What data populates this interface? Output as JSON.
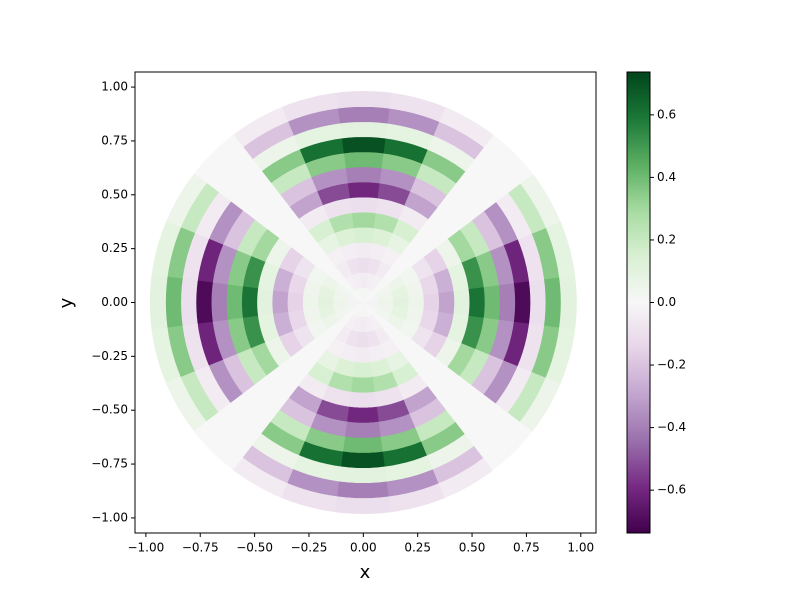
{
  "chart_data": {
    "type": "polar_field",
    "xlabel": "x",
    "ylabel": "y",
    "xlim": [
      -1.05,
      1.07
    ],
    "ylim": [
      -1.07,
      1.07
    ],
    "xticks": [
      {
        "value": -1,
        "label": "−1.00"
      },
      {
        "value": -0.75,
        "label": "−0.75"
      },
      {
        "value": -0.5,
        "label": "−0.50"
      },
      {
        "value": -0.25,
        "label": "−0.25"
      },
      {
        "value": 0,
        "label": "0.00"
      },
      {
        "value": 0.25,
        "label": "0.25"
      },
      {
        "value": 0.5,
        "label": "0.50"
      },
      {
        "value": 0.75,
        "label": "0.75"
      },
      {
        "value": 1,
        "label": "1.00"
      }
    ],
    "yticks": [
      {
        "value": -1,
        "label": "−1.00"
      },
      {
        "value": -0.75,
        "label": "−0.75"
      },
      {
        "value": -0.5,
        "label": "−0.50"
      },
      {
        "value": -0.25,
        "label": "−0.25"
      },
      {
        "value": 0,
        "label": "0.00"
      },
      {
        "value": 0.25,
        "label": "0.25"
      },
      {
        "value": 0.5,
        "label": "0.50"
      },
      {
        "value": 0.75,
        "label": "0.75"
      },
      {
        "value": 1,
        "label": "1.00"
      }
    ],
    "clim": [
      -0.737,
      0.737
    ],
    "cticks": [
      {
        "value": -0.6,
        "label": "−0.6"
      },
      {
        "value": -0.4,
        "label": "−0.4"
      },
      {
        "value": -0.2,
        "label": "−0.2"
      },
      {
        "value": 0,
        "label": "0.0"
      },
      0.2,
      0.4,
      0.6
    ],
    "colormap": [
      "#40004b",
      "#762a83",
      "#9970ab",
      "#c2a5cf",
      "#e7d4e8",
      "#f7f7f7",
      "#d9f0d3",
      "#a6dba0",
      "#5aae61",
      "#1b7837",
      "#00441b"
    ],
    "r": [
      0.035,
      0.105,
      0.175,
      0.245,
      0.315,
      0.385,
      0.455,
      0.525,
      0.595,
      0.665,
      0.735,
      0.805,
      0.875,
      0.945
    ],
    "theta_deg": [
      0,
      15,
      30,
      45,
      60,
      75,
      90,
      105,
      120,
      135,
      150,
      165,
      180,
      195,
      210,
      225,
      240,
      255,
      270,
      285,
      300,
      315,
      330,
      345
    ],
    "values": [
      [
        -0.02,
        -0.02,
        -0.01,
        0,
        0.01,
        0.02,
        0.02,
        0.02,
        0.01,
        0,
        -0.01,
        -0.02,
        -0.02,
        -0.02,
        -0.01,
        0,
        0.01,
        0.02,
        0.02,
        0.02,
        0.01,
        0,
        -0.01,
        -0.02
      ],
      [
        0.05,
        0.04,
        0.03,
        0,
        -0.03,
        -0.04,
        -0.05,
        -0.04,
        -0.03,
        0,
        0.03,
        0.04,
        0.05,
        0.04,
        0.03,
        0,
        -0.03,
        -0.04,
        -0.05,
        -0.04,
        -0.03,
        0,
        0.03,
        0.04
      ],
      [
        0.1,
        0.09,
        0.05,
        0,
        -0.05,
        -0.09,
        -0.1,
        -0.09,
        -0.05,
        0,
        0.05,
        0.09,
        0.1,
        0.09,
        0.05,
        0,
        -0.05,
        -0.09,
        -0.1,
        -0.09,
        -0.05,
        0,
        0.05,
        0.09
      ],
      [
        0.05,
        0.04,
        0.03,
        0,
        -0.03,
        -0.04,
        -0.05,
        -0.04,
        -0.03,
        0,
        0.03,
        0.04,
        0.05,
        0.04,
        0.03,
        0,
        -0.03,
        -0.04,
        -0.05,
        -0.04,
        -0.03,
        0,
        0.03,
        0.04
      ],
      [
        -0.15,
        -0.13,
        -0.08,
        0,
        0.08,
        0.13,
        0.15,
        0.13,
        0.08,
        0,
        -0.08,
        -0.13,
        -0.15,
        -0.13,
        -0.08,
        0,
        0.08,
        0.13,
        0.15,
        0.13,
        0.08,
        0,
        -0.08,
        -0.13
      ],
      [
        -0.3,
        -0.26,
        -0.15,
        0,
        0.15,
        0.26,
        0.3,
        0.26,
        0.15,
        0,
        -0.15,
        -0.26,
        -0.3,
        -0.26,
        -0.15,
        0,
        0.15,
        0.26,
        0.3,
        0.26,
        0.15,
        0,
        -0.15,
        -0.26
      ],
      [
        0.1,
        0.09,
        0.05,
        0,
        -0.05,
        -0.09,
        -0.1,
        -0.09,
        -0.05,
        0,
        0.05,
        0.09,
        0.1,
        0.09,
        0.05,
        0,
        -0.05,
        -0.09,
        -0.1,
        -0.09,
        -0.05,
        0,
        0.05,
        0.09
      ],
      [
        0.6,
        0.52,
        0.3,
        0,
        -0.3,
        -0.52,
        -0.6,
        -0.52,
        -0.3,
        0,
        0.3,
        0.52,
        0.6,
        0.52,
        0.3,
        0,
        -0.3,
        -0.52,
        -0.6,
        -0.52,
        -0.3,
        0,
        0.3,
        0.52
      ],
      [
        0.4,
        0.35,
        0.2,
        0,
        -0.2,
        -0.35,
        -0.4,
        -0.35,
        -0.2,
        0,
        0.2,
        0.35,
        0.4,
        0.35,
        0.2,
        0,
        -0.2,
        -0.35,
        -0.4,
        -0.35,
        -0.2,
        0,
        0.2,
        0.35
      ],
      [
        -0.4,
        -0.35,
        -0.2,
        0,
        0.2,
        0.35,
        0.4,
        0.35,
        0.2,
        0,
        -0.2,
        -0.35,
        -0.4,
        -0.35,
        -0.2,
        0,
        0.2,
        0.35,
        0.4,
        0.35,
        0.2,
        0,
        -0.2,
        -0.35
      ],
      [
        -0.7,
        -0.61,
        -0.35,
        0,
        0.35,
        0.61,
        0.7,
        0.61,
        0.35,
        0,
        -0.35,
        -0.61,
        -0.7,
        -0.61,
        -0.35,
        0,
        0.35,
        0.61,
        0.7,
        0.61,
        0.35,
        0,
        -0.35,
        -0.61
      ],
      [
        -0.1,
        -0.09,
        -0.05,
        0,
        0.05,
        0.09,
        0.1,
        0.09,
        0.05,
        0,
        -0.05,
        -0.09,
        -0.1,
        -0.09,
        -0.05,
        0,
        0.05,
        0.09,
        0.1,
        0.09,
        0.05,
        0,
        -0.05,
        -0.09
      ],
      [
        0.4,
        0.35,
        0.2,
        0,
        -0.2,
        -0.35,
        -0.4,
        -0.35,
        -0.2,
        0,
        0.2,
        0.35,
        0.4,
        0.35,
        0.2,
        0,
        -0.2,
        -0.35,
        -0.4,
        -0.35,
        -0.2,
        0,
        0.2,
        0.35
      ],
      [
        0.1,
        0.09,
        0.05,
        0,
        -0.05,
        -0.09,
        -0.1,
        -0.09,
        -0.05,
        0,
        0.05,
        0.09,
        0.1,
        0.09,
        0.05,
        0,
        -0.05,
        -0.09,
        -0.1,
        -0.09,
        -0.05,
        0,
        0.05,
        0.09
      ]
    ]
  }
}
